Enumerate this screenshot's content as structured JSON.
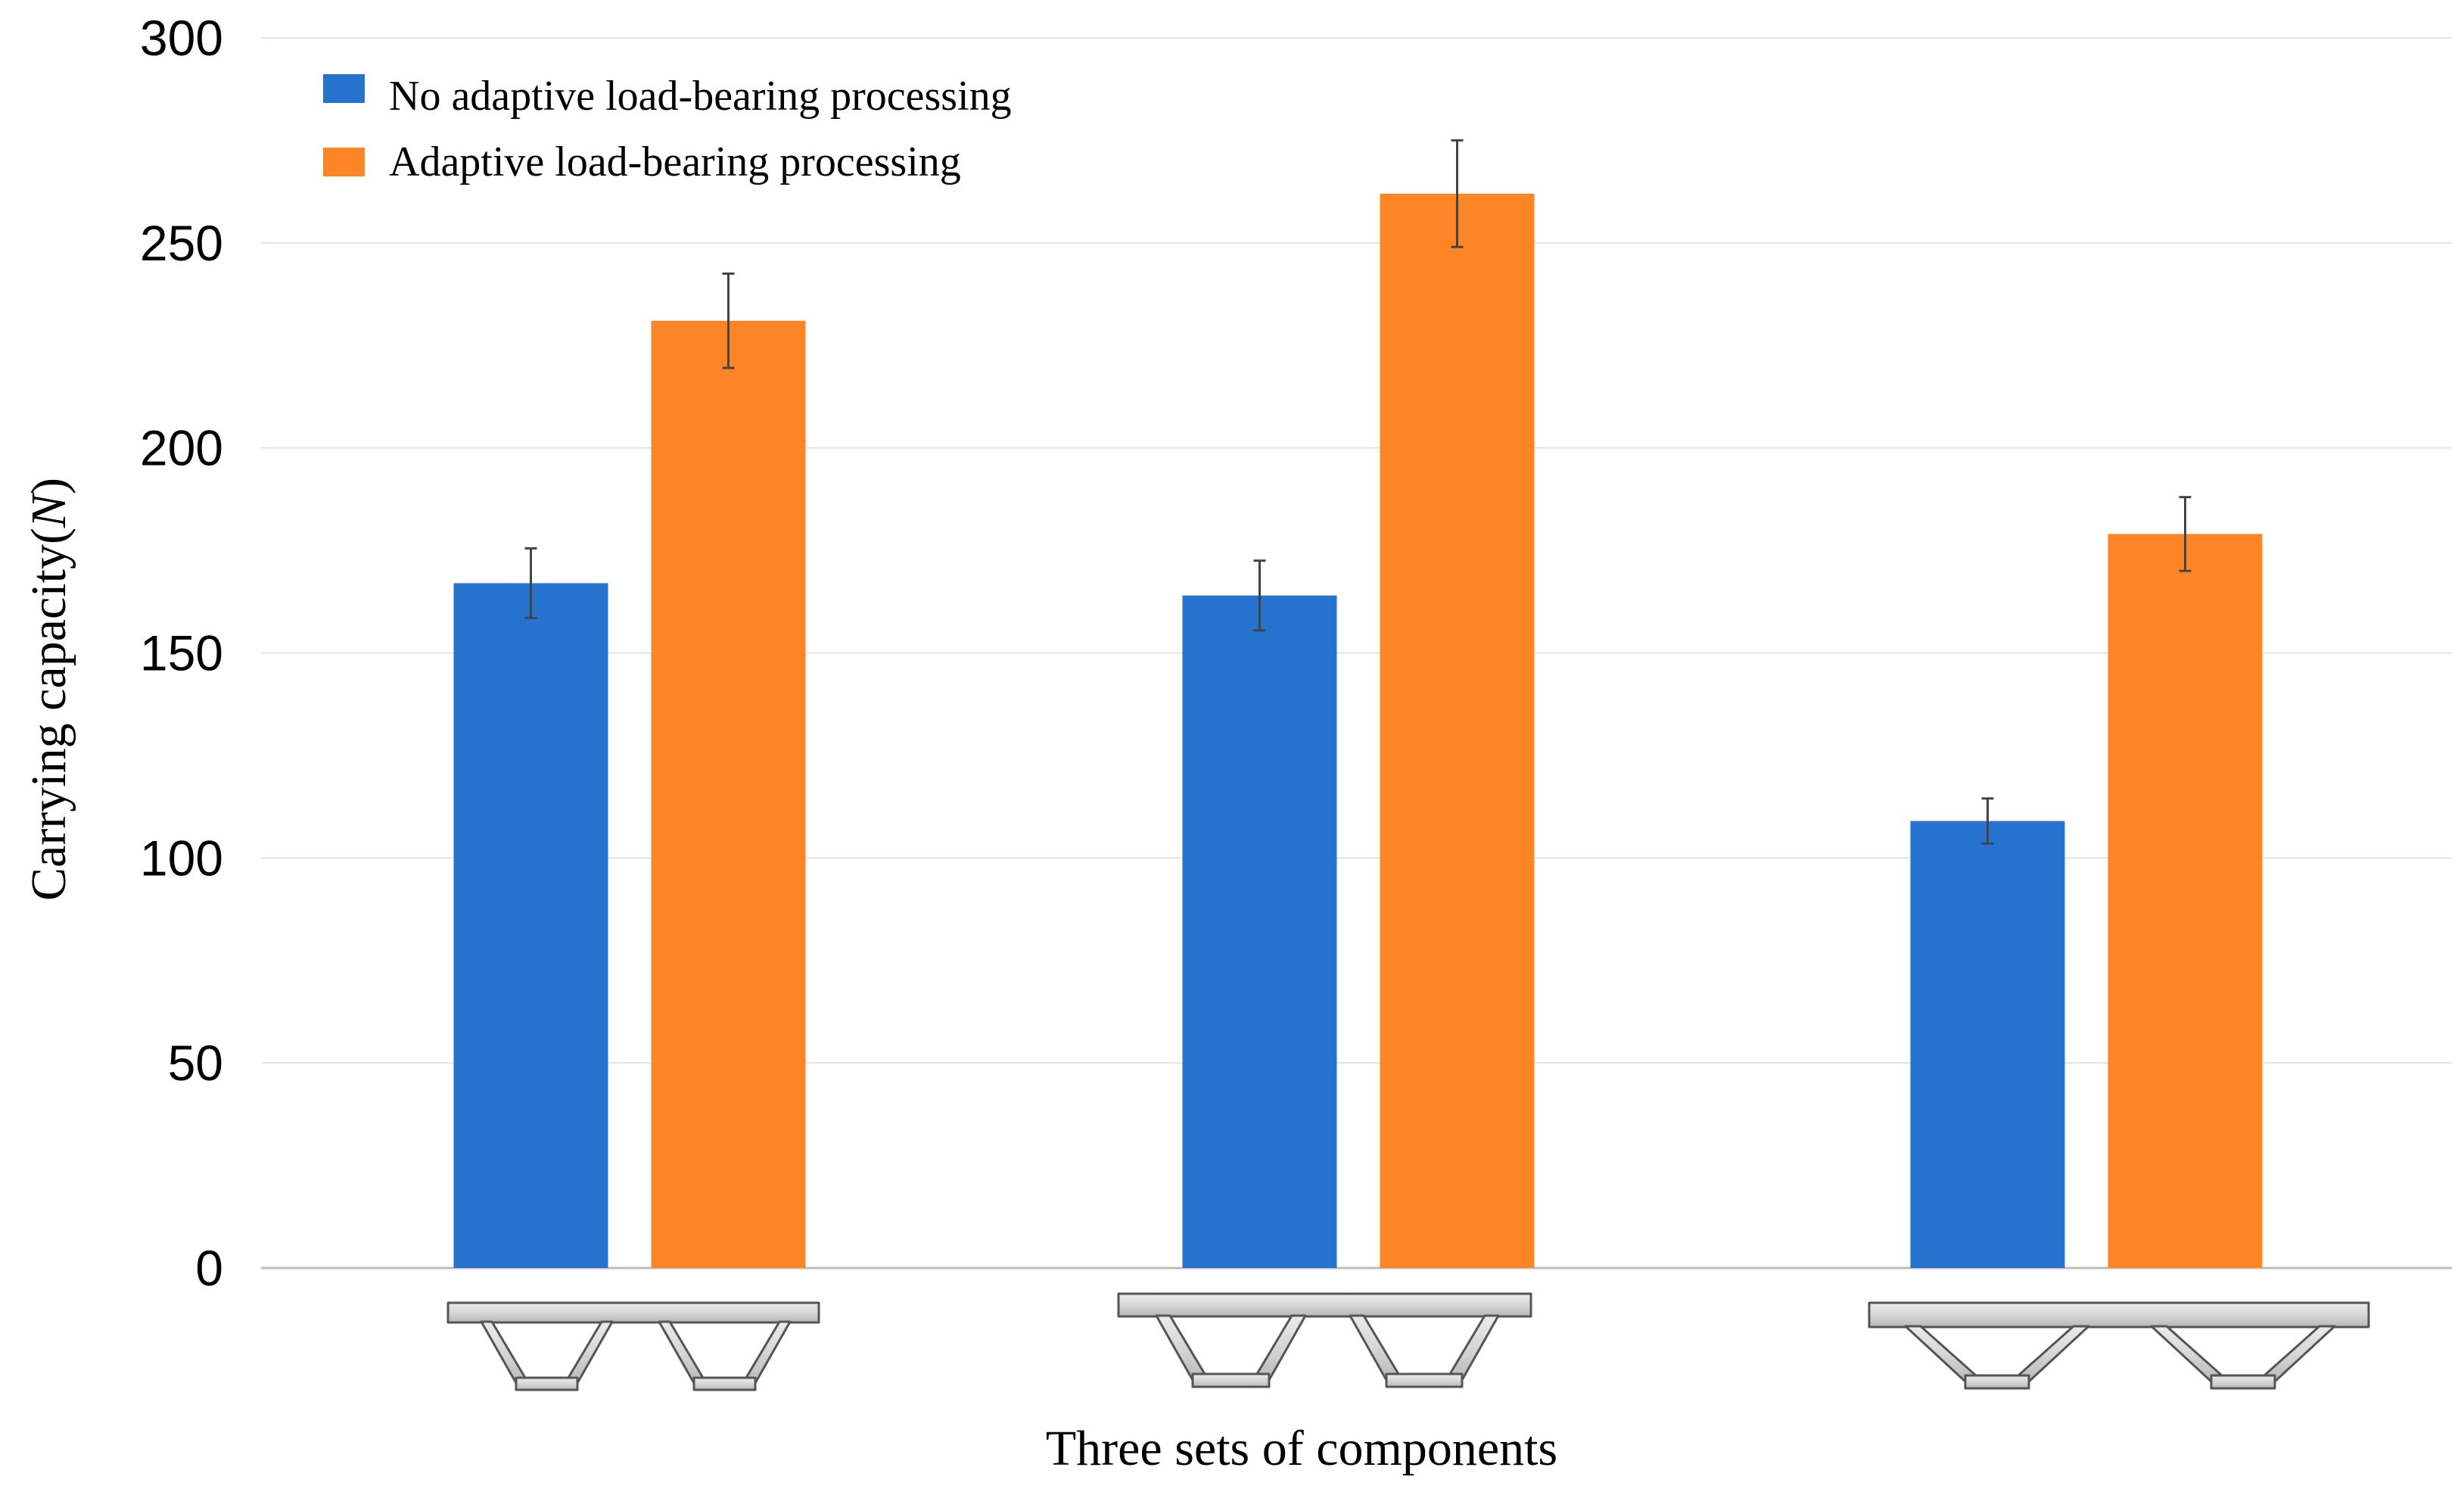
{
  "chart_data": {
    "type": "bar",
    "title": "",
    "xlabel": "Three sets of components",
    "ylabel_main": "Carrying capacity(",
    "ylabel_unit": "N",
    "ylabel_close": ")",
    "ylim": [
      0,
      300
    ],
    "yticks": [
      0,
      50,
      100,
      150,
      200,
      250,
      300
    ],
    "grid": true,
    "legend_position": "top-left",
    "categories": [
      "component-set-1",
      "component-set-2",
      "component-set-3"
    ],
    "series": [
      {
        "name": "No adaptive load-bearing processing",
        "color": "#2573cf",
        "values": [
          167,
          164,
          109
        ],
        "error": [
          8.5,
          8.5,
          5.5
        ]
      },
      {
        "name": "Adaptive load-bearing processing",
        "color": "#fd8526",
        "values": [
          231,
          262,
          179
        ],
        "error": [
          11.5,
          13,
          9
        ]
      }
    ]
  }
}
